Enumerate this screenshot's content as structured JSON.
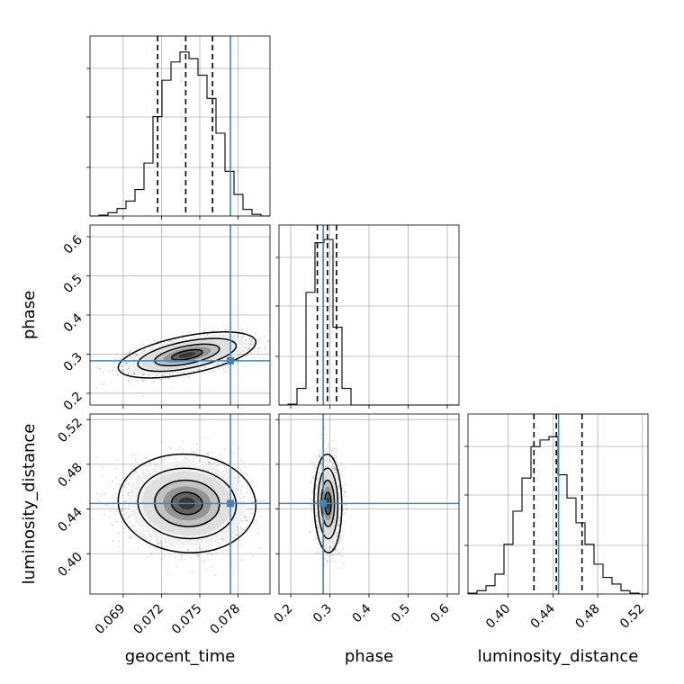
{
  "chart_data": {
    "type": "corner",
    "grid": true,
    "truth_color": "#4682b4",
    "parameters": [
      {
        "key": "geocent_time",
        "label": "geocent_time",
        "range": [
          0.0664,
          0.0805
        ],
        "ticks": [
          0.069,
          0.072,
          0.075,
          0.078
        ],
        "tick_labels": [
          "0.069",
          "0.072",
          "0.075",
          "0.078"
        ],
        "truth": 0.0774,
        "quantiles": [
          0.0717,
          0.0739,
          0.076
        ],
        "hist": [
          0,
          0.005,
          0.02,
          0.045,
          0.09,
          0.16,
          0.32,
          0.6,
          0.82,
          0.93,
          0.99,
          0.95,
          0.85,
          0.71,
          0.5,
          0.27,
          0.13,
          0.04,
          0.01,
          0
        ]
      },
      {
        "key": "phase",
        "label": "phase",
        "range": [
          0.17,
          0.63
        ],
        "ticks": [
          0.2,
          0.3,
          0.4,
          0.5,
          0.6
        ],
        "tick_labels": [
          "0.2",
          "0.3",
          "0.4",
          "0.5",
          "0.6"
        ],
        "truth": 0.283,
        "quantiles": [
          0.268,
          0.294,
          0.317
        ],
        "hist": [
          0,
          0.005,
          0.1,
          0.68,
          0.98,
          1.0,
          0.47,
          0.1,
          0,
          0,
          0,
          0,
          0,
          0,
          0,
          0,
          0,
          0,
          0,
          0
        ]
      },
      {
        "key": "luminosity_distance",
        "label": "luminosity_distance",
        "range": [
          0.364,
          0.525
        ],
        "ticks": [
          0.4,
          0.44,
          0.48,
          0.52
        ],
        "tick_labels": [
          "0.40",
          "0.44",
          "0.48",
          "0.52"
        ],
        "truth": 0.445,
        "quantiles": [
          0.423,
          0.443,
          0.466
        ],
        "hist": [
          0.005,
          0.02,
          0.05,
          0.12,
          0.3,
          0.5,
          0.7,
          0.89,
          0.93,
          0.95,
          0.72,
          0.58,
          0.43,
          0.3,
          0.18,
          0.1,
          0.06,
          0.02,
          0.005,
          0
        ]
      }
    ],
    "pairs": [
      {
        "x": "geocent_time",
        "y": "phase",
        "mean": [
          0.074,
          0.298
        ],
        "sd": [
          0.0022,
          0.024
        ],
        "rho": 0.55
      },
      {
        "x": "geocent_time",
        "y": "luminosity_distance",
        "mean": [
          0.074,
          0.445
        ],
        "sd": [
          0.0022,
          0.018
        ],
        "rho": -0.05
      },
      {
        "x": "phase",
        "y": "luminosity_distance",
        "mean": [
          0.295,
          0.445
        ],
        "sd": [
          0.0145,
          0.018
        ],
        "rho": -0.05
      }
    ]
  }
}
